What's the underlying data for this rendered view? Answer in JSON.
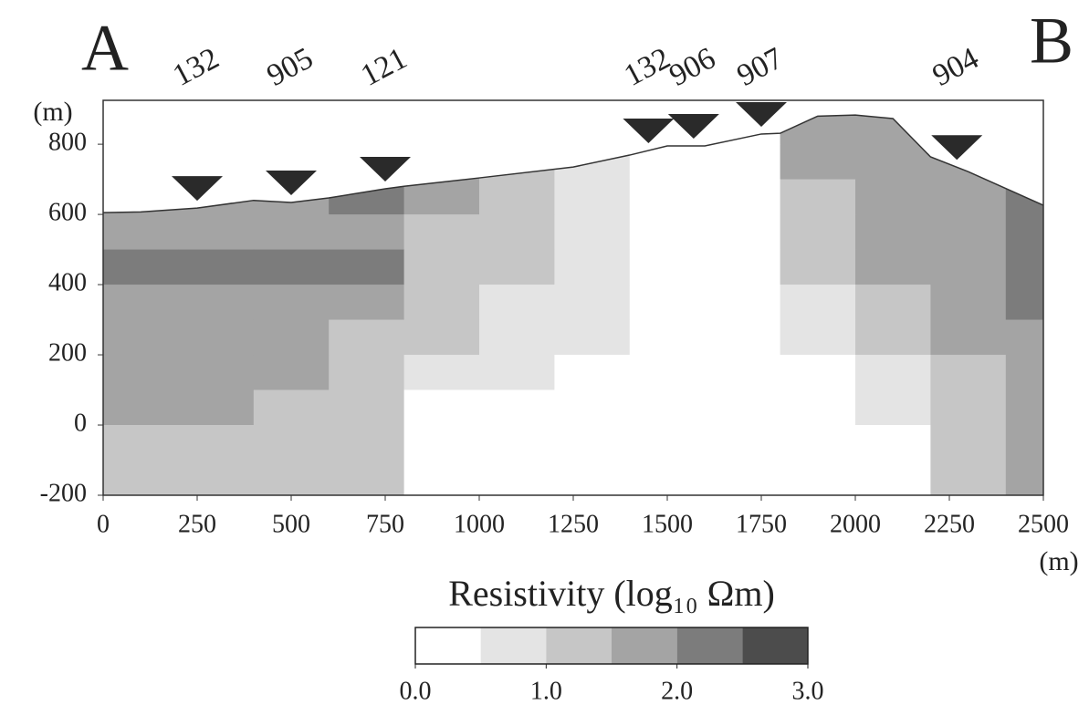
{
  "chart_data": {
    "type": "section",
    "start_label": "A",
    "end_label": "B",
    "ylabel": "(m)",
    "xlabel": "(m)",
    "xlim": [
      0,
      2500
    ],
    "xticks": [
      0,
      250,
      500,
      750,
      1000,
      1250,
      1500,
      1750,
      2000,
      2250,
      2500
    ],
    "ylim": [
      -200,
      925
    ],
    "yticks": [
      -200,
      0,
      200,
      400,
      600,
      800
    ],
    "x_edges": [
      0,
      200,
      400,
      600,
      800,
      1000,
      1200,
      1400,
      1600,
      1800,
      2000,
      2200,
      2400,
      2500
    ],
    "y_edges": [
      900,
      800,
      700,
      600,
      500,
      400,
      300,
      200,
      100,
      0,
      -100,
      -200
    ],
    "values": [
      [
        null,
        null,
        null,
        null,
        null,
        null,
        null,
        null,
        0.2,
        1.6,
        1.8,
        null,
        null
      ],
      [
        null,
        null,
        null,
        null,
        1.5,
        1.2,
        0.8,
        0.3,
        0.2,
        1.5,
        1.8,
        1.9,
        null
      ],
      [
        1.6,
        1.6,
        1.7,
        2.2,
        1.5,
        1.2,
        0.8,
        0.2,
        0.1,
        1.4,
        1.7,
        1.9,
        2.2
      ],
      [
        1.7,
        1.7,
        1.8,
        1.9,
        1.4,
        1.1,
        0.7,
        0.1,
        0.0,
        1.3,
        1.6,
        1.8,
        2.2
      ],
      [
        2.0,
        2.0,
        2.0,
        2.0,
        1.3,
        1.0,
        0.7,
        0.1,
        0.0,
        1.2,
        1.5,
        1.7,
        2.1
      ],
      [
        1.8,
        1.8,
        1.6,
        1.6,
        1.2,
        0.9,
        0.6,
        0.2,
        0.0,
        0.8,
        1.4,
        1.6,
        2.0
      ],
      [
        1.6,
        1.6,
        1.6,
        1.4,
        1.0,
        0.8,
        0.6,
        0.3,
        0.0,
        0.5,
        1.1,
        1.5,
        1.9
      ],
      [
        1.6,
        1.6,
        1.5,
        1.3,
        0.8,
        0.5,
        0.4,
        0.2,
        0.0,
        0.3,
        0.8,
        1.4,
        1.8
      ],
      [
        1.5,
        1.5,
        1.4,
        1.2,
        0.2,
        0.2,
        0.2,
        0.0,
        0.3,
        0.1,
        0.5,
        1.4,
        1.8
      ],
      [
        1.4,
        1.4,
        1.3,
        1.1,
        0.0,
        0.0,
        0.0,
        0.0,
        0.3,
        0.0,
        0.0,
        1.3,
        1.7
      ],
      [
        1.3,
        1.3,
        1.2,
        1.0,
        0.0,
        0.0,
        0.0,
        0.0,
        0.0,
        0.0,
        0.0,
        1.2,
        1.6
      ]
    ],
    "topography": {
      "x": [
        0,
        100,
        250,
        400,
        500,
        600,
        750,
        800,
        1000,
        1250,
        1400,
        1500,
        1600,
        1750,
        1800,
        1900,
        2000,
        2100,
        2200,
        2300,
        2500
      ],
      "elevation": [
        605,
        607,
        618,
        640,
        634,
        647,
        673,
        680,
        704,
        735,
        769,
        795,
        795,
        829,
        831,
        880,
        883,
        873,
        764,
        722,
        626
      ]
    },
    "stations": {
      "labels": [
        "132",
        "905",
        "121",
        "132",
        "906",
        "907",
        "904"
      ],
      "x": [
        250,
        500,
        750,
        1450,
        1570,
        1750,
        2270
      ]
    },
    "colorbar": {
      "label": "Resistivity (log₁₀ Ωm)",
      "clim": [
        0,
        3
      ],
      "colors": [
        "#ffffff",
        "#e4e4e4",
        "#c6c6c6",
        "#a4a4a4",
        "#7c7c7c",
        "#4c4c4c"
      ],
      "ticks": [
        {
          "value": 0,
          "label": "0.0"
        },
        {
          "value": 1,
          "label": "1.0"
        },
        {
          "value": 2,
          "label": "2.0"
        },
        {
          "value": 3,
          "label": "3.0"
        }
      ]
    }
  }
}
